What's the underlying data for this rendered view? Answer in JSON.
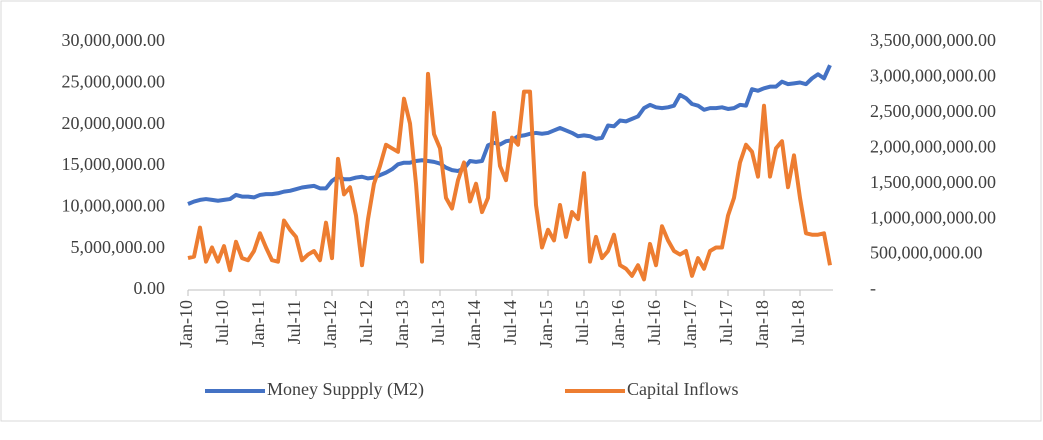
{
  "chart_data": {
    "type": "line",
    "categories": [
      "Jan-10",
      null,
      null,
      null,
      null,
      null,
      "Jul-10",
      null,
      null,
      null,
      null,
      null,
      "Jan-11",
      null,
      null,
      null,
      null,
      null,
      "Jul-11",
      null,
      null,
      null,
      null,
      null,
      "Jan-12",
      null,
      null,
      null,
      null,
      null,
      "Jul-12",
      null,
      null,
      null,
      null,
      null,
      "Jan-13",
      null,
      null,
      null,
      null,
      null,
      "Jul-13",
      null,
      null,
      null,
      null,
      null,
      "Jan-14",
      null,
      null,
      null,
      null,
      null,
      "Jul-14",
      null,
      null,
      null,
      null,
      null,
      "Jan-15",
      null,
      null,
      null,
      null,
      null,
      "Jul-15",
      null,
      null,
      null,
      null,
      null,
      "Jan-16",
      null,
      null,
      null,
      null,
      null,
      "Jul-16",
      null,
      null,
      null,
      null,
      null,
      "Jan-17",
      null,
      null,
      null,
      null,
      null,
      "Jul-17",
      null,
      null,
      null,
      null,
      null,
      "Jan-18",
      null,
      null,
      null,
      null,
      null,
      "Jul-18",
      null,
      null,
      null,
      null,
      null
    ],
    "series": [
      {
        "name": "Money Suppply (M2)",
        "color": "#4472c4",
        "values": [
          10400000,
          10700000,
          10900000,
          11000000,
          10900000,
          10800000,
          10900000,
          11000000,
          11500000,
          11300000,
          11300000,
          11200000,
          11500000,
          11600000,
          11600000,
          11700000,
          11900000,
          12000000,
          12200000,
          12400000,
          12500000,
          12600000,
          12300000,
          12300000,
          13200000,
          13700000,
          13400000,
          13400000,
          13600000,
          13700000,
          13500000,
          13600000,
          13900000,
          14200000,
          14600000,
          15200000,
          15400000,
          15400000,
          15600000,
          15700000,
          15600000,
          15500000,
          15300000,
          14800000,
          14500000,
          14400000,
          14700000,
          15600000,
          15500000,
          15600000,
          17500000,
          17800000,
          17600000,
          18000000,
          18100000,
          18600000,
          18700000,
          18900000,
          19000000,
          18900000,
          19000000,
          19300000,
          19600000,
          19300000,
          19000000,
          18600000,
          18700000,
          18600000,
          18300000,
          18400000,
          19900000,
          19800000,
          20500000,
          20400000,
          20700000,
          21000000,
          22000000,
          22400000,
          22100000,
          22000000,
          22100000,
          22300000,
          23600000,
          23200000,
          22500000,
          22300000,
          21800000,
          22000000,
          22000000,
          22100000,
          21900000,
          22000000,
          22400000,
          22300000,
          24300000,
          24100000,
          24400000,
          24600000,
          24600000,
          25200000,
          24900000,
          25000000,
          25100000,
          24900000,
          25600000,
          26100000,
          25600000,
          27200000
        ]
      },
      {
        "name": "Capital Inflows",
        "color": "#ed7d31",
        "axis": "y2",
        "values": [
          450000000,
          470000000,
          880000000,
          400000000,
          600000000,
          400000000,
          620000000,
          280000000,
          680000000,
          450000000,
          420000000,
          550000000,
          800000000,
          600000000,
          420000000,
          400000000,
          980000000,
          850000000,
          750000000,
          420000000,
          500000000,
          550000000,
          420000000,
          950000000,
          450000000,
          1850000000,
          1350000000,
          1450000000,
          1050000000,
          350000000,
          1000000000,
          1500000000,
          1750000000,
          2050000000,
          2000000000,
          1950000000,
          2700000000,
          2350000000,
          1500000000,
          400000000,
          3050000000,
          2200000000,
          2000000000,
          1300000000,
          1150000000,
          1550000000,
          1800000000,
          1250000000,
          1500000000,
          1100000000,
          1300000000,
          2500000000,
          1750000000,
          1550000000,
          2150000000,
          2050000000,
          2800000000,
          2800000000,
          1200000000,
          600000000,
          850000000,
          700000000,
          1200000000,
          750000000,
          1100000000,
          1000000000,
          1650000000,
          400000000,
          750000000,
          450000000,
          550000000,
          780000000,
          350000000,
          300000000,
          200000000,
          350000000,
          150000000,
          650000000,
          350000000,
          900000000,
          700000000,
          550000000,
          500000000,
          550000000,
          200000000,
          450000000,
          300000000,
          550000000,
          600000000,
          600000000,
          1050000000,
          1300000000,
          1800000000,
          2050000000,
          1950000000,
          1600000000,
          2600000000,
          1600000000,
          2000000000,
          2100000000,
          1450000000,
          1900000000,
          1300000000,
          800000000,
          780000000,
          780000000,
          800000000,
          350000000
        ]
      }
    ],
    "ylim": [
      0,
      30000000
    ],
    "yticks": [
      {
        "value": 0,
        "label": "0.00"
      },
      {
        "value": 5000000,
        "label": "5,000,000.00"
      },
      {
        "value": 10000000,
        "label": "10,000,000.00"
      },
      {
        "value": 15000000,
        "label": "15,000,000.00"
      },
      {
        "value": 20000000,
        "label": "20,000,000.00"
      },
      {
        "value": 25000000,
        "label": "25,000,000.00"
      },
      {
        "value": 30000000,
        "label": "30,000,000.00"
      }
    ],
    "y2lim": [
      0,
      3500000000
    ],
    "y2ticks": [
      {
        "value": 0,
        "label": "-"
      },
      {
        "value": 500000000,
        "label": "500,000,000.00"
      },
      {
        "value": 1000000000,
        "label": "1,000,000,000.00"
      },
      {
        "value": 1500000000,
        "label": "1,500,000,000.00"
      },
      {
        "value": 2000000000,
        "label": "2,000,000,000.00"
      },
      {
        "value": 2500000000,
        "label": "2,500,000,000.00"
      },
      {
        "value": 3000000000,
        "label": "3,000,000,000.00"
      },
      {
        "value": 3500000000,
        "label": "3,500,000,000.00"
      }
    ],
    "legend": "bottom"
  }
}
